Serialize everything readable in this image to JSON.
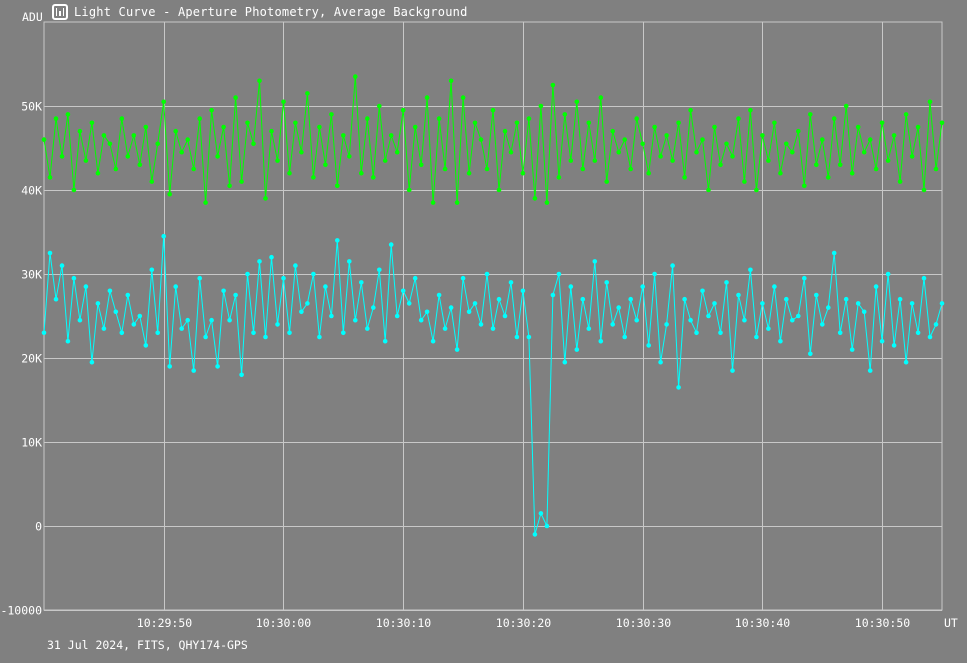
{
  "window": {
    "title": "Light Curve - Aperture Photometry, Average Background",
    "icon": "app-icon"
  },
  "footer": {
    "caption": "31 Jul 2024, FITS, QHY174-GPS"
  },
  "colors": {
    "background": "#808080",
    "grid": "#c8c8c8",
    "text": "#ffffff",
    "series_green": "#00ff00",
    "series_cyan": "#00ffff"
  },
  "chart_data": {
    "type": "line",
    "title": "Light Curve - Aperture Photometry, Average Background",
    "xlabel": "UT",
    "ylabel": "ADU",
    "grid": true,
    "markers": true,
    "xlim": [
      "10:29:40.0",
      "10:30:55.0"
    ],
    "ylim": [
      -10000,
      60000
    ],
    "x_ticks": [
      "10:29:50",
      "10:30:00",
      "10:30:10",
      "10:30:20",
      "10:30:30",
      "10:30:40",
      "10:30:50"
    ],
    "y_ticks": [
      "-10000",
      "0",
      "10K",
      "20K",
      "30K",
      "40K",
      "50K"
    ],
    "x": [
      "10:29:40.0",
      "10:29:40.5",
      "10:29:41.0",
      "10:29:41.5",
      "10:29:42.0",
      "10:29:42.5",
      "10:29:43.0",
      "10:29:43.5",
      "10:29:44.0",
      "10:29:44.5",
      "10:29:45.0",
      "10:29:45.5",
      "10:29:46.0",
      "10:29:46.5",
      "10:29:47.0",
      "10:29:47.5",
      "10:29:48.0",
      "10:29:48.5",
      "10:29:49.0",
      "10:29:49.5",
      "10:29:50.0",
      "10:29:50.5",
      "10:29:51.0",
      "10:29:51.5",
      "10:29:52.0",
      "10:29:52.5",
      "10:29:53.0",
      "10:29:53.5",
      "10:29:54.0",
      "10:29:54.5",
      "10:29:55.0",
      "10:29:55.5",
      "10:29:56.0",
      "10:29:56.5",
      "10:29:57.0",
      "10:29:57.5",
      "10:29:58.0",
      "10:29:58.5",
      "10:29:59.0",
      "10:29:59.5",
      "10:30:00.0",
      "10:30:00.5",
      "10:30:01.0",
      "10:30:01.5",
      "10:30:02.0",
      "10:30:02.5",
      "10:30:03.0",
      "10:30:03.5",
      "10:30:04.0",
      "10:30:04.5",
      "10:30:05.0",
      "10:30:05.5",
      "10:30:06.0",
      "10:30:06.5",
      "10:30:07.0",
      "10:30:07.5",
      "10:30:08.0",
      "10:30:08.5",
      "10:30:09.0",
      "10:30:09.5",
      "10:30:10.0",
      "10:30:10.5",
      "10:30:11.0",
      "10:30:11.5",
      "10:30:12.0",
      "10:30:12.5",
      "10:30:13.0",
      "10:30:13.5",
      "10:30:14.0",
      "10:30:14.5",
      "10:30:15.0",
      "10:30:15.5",
      "10:30:16.0",
      "10:30:16.5",
      "10:30:17.0",
      "10:30:17.5",
      "10:30:18.0",
      "10:30:18.5",
      "10:30:19.0",
      "10:30:19.5",
      "10:30:20.0",
      "10:30:20.5",
      "10:30:21.0",
      "10:30:21.5",
      "10:30:22.0",
      "10:30:22.5",
      "10:30:23.0",
      "10:30:23.5",
      "10:30:24.0",
      "10:30:24.5",
      "10:30:25.0",
      "10:30:25.5",
      "10:30:26.0",
      "10:30:26.5",
      "10:30:27.0",
      "10:30:27.5",
      "10:30:28.0",
      "10:30:28.5",
      "10:30:29.0",
      "10:30:29.5",
      "10:30:30.0",
      "10:30:30.5",
      "10:30:31.0",
      "10:30:31.5",
      "10:30:32.0",
      "10:30:32.5",
      "10:30:33.0",
      "10:30:33.5",
      "10:30:34.0",
      "10:30:34.5",
      "10:30:35.0",
      "10:30:35.5",
      "10:30:36.0",
      "10:30:36.5",
      "10:30:37.0",
      "10:30:37.5",
      "10:30:38.0",
      "10:30:38.5",
      "10:30:39.0",
      "10:30:39.5",
      "10:30:40.0",
      "10:30:40.5",
      "10:30:41.0",
      "10:30:41.5",
      "10:30:42.0",
      "10:30:42.5",
      "10:30:43.0",
      "10:30:43.5",
      "10:30:44.0",
      "10:30:44.5",
      "10:30:45.0",
      "10:30:45.5",
      "10:30:46.0",
      "10:30:46.5",
      "10:30:47.0",
      "10:30:47.5",
      "10:30:48.0",
      "10:30:48.5",
      "10:30:49.0",
      "10:30:49.5",
      "10:30:50.0",
      "10:30:50.5",
      "10:30:51.0",
      "10:30:51.5",
      "10:30:52.0",
      "10:30:52.5",
      "10:30:53.0",
      "10:30:53.5",
      "10:30:54.0",
      "10:30:54.5",
      "10:30:55.0"
    ],
    "series": [
      {
        "color": "#00ff00",
        "values": [
          46000,
          41500,
          48500,
          44000,
          49000,
          40000,
          47000,
          43500,
          48000,
          42000,
          46500,
          45500,
          42500,
          48500,
          44000,
          46500,
          43000,
          47500,
          41000,
          45500,
          50500,
          39500,
          47000,
          44500,
          46000,
          42500,
          48500,
          38500,
          49500,
          44000,
          47500,
          40500,
          51000,
          41000,
          48000,
          45500,
          53000,
          39000,
          47000,
          43500,
          50500,
          42000,
          48000,
          44500,
          51500,
          41500,
          47500,
          43000,
          49000,
          40500,
          46500,
          44000,
          53500,
          42000,
          48500,
          41500,
          50000,
          43500,
          46500,
          44500,
          49500,
          40000,
          47500,
          43000,
          51000,
          38500,
          48500,
          42500,
          53000,
          38500,
          51000,
          42000,
          48000,
          46000,
          42500,
          49500,
          40000,
          47000,
          44500,
          48000,
          42000,
          48500,
          39000,
          50000,
          38500,
          52500,
          41500,
          49000,
          43500,
          50500,
          42500,
          48000,
          43500,
          51000,
          41000,
          47000,
          44500,
          46000,
          42500,
          48500,
          45500,
          42000,
          47500,
          44000,
          46500,
          43500,
          48000,
          41500,
          49500,
          44500,
          46000,
          40000,
          47500,
          43000,
          45500,
          44000,
          48500,
          41000,
          49500,
          40000,
          46500,
          43500,
          48000,
          42000,
          45500,
          44500,
          47000,
          40500,
          49000,
          43000,
          46000,
          41500,
          48500,
          43000,
          50000,
          42000,
          47500,
          44500,
          46000,
          42500,
          48000,
          43500,
          46500,
          41000,
          49000,
          44000,
          47500,
          40000,
          50500,
          42500,
          48000
        ]
      },
      {
        "color": "#00ffff",
        "values": [
          23000,
          32500,
          27000,
          31000,
          22000,
          29500,
          24500,
          28500,
          19500,
          26500,
          23500,
          28000,
          25500,
          23000,
          27500,
          24000,
          25000,
          21500,
          30500,
          23000,
          34500,
          19000,
          28500,
          23500,
          24500,
          18500,
          29500,
          22500,
          24500,
          19000,
          28000,
          24500,
          27500,
          18000,
          30000,
          23000,
          31500,
          22500,
          32000,
          24000,
          29500,
          23000,
          31000,
          25500,
          26500,
          30000,
          22500,
          28500,
          25000,
          34000,
          23000,
          31500,
          24500,
          29000,
          23500,
          26000,
          30500,
          22000,
          33500,
          25000,
          28000,
          26500,
          29500,
          24500,
          25500,
          22000,
          27500,
          23500,
          26000,
          21000,
          29500,
          25500,
          26500,
          24000,
          30000,
          23500,
          27000,
          25000,
          29000,
          22500,
          28000,
          22500,
          -1000,
          1500,
          0,
          27500,
          30000,
          19500,
          28500,
          21000,
          27000,
          23500,
          31500,
          22000,
          29000,
          24000,
          26000,
          22500,
          27000,
          24500,
          28500,
          21500,
          30000,
          19500,
          24000,
          31000,
          16500,
          27000,
          24500,
          23000,
          28000,
          25000,
          26500,
          23000,
          29000,
          18500,
          27500,
          24500,
          30500,
          22500,
          26500,
          23500,
          28500,
          22000,
          27000,
          24500,
          25000,
          29500,
          20500,
          27500,
          24000,
          26000,
          32500,
          23000,
          27000,
          21000,
          26500,
          25500,
          18500,
          28500,
          22000,
          30000,
          21500,
          27000,
          19500,
          26500,
          23000,
          29500,
          22500,
          24000,
          26500
        ]
      }
    ]
  }
}
